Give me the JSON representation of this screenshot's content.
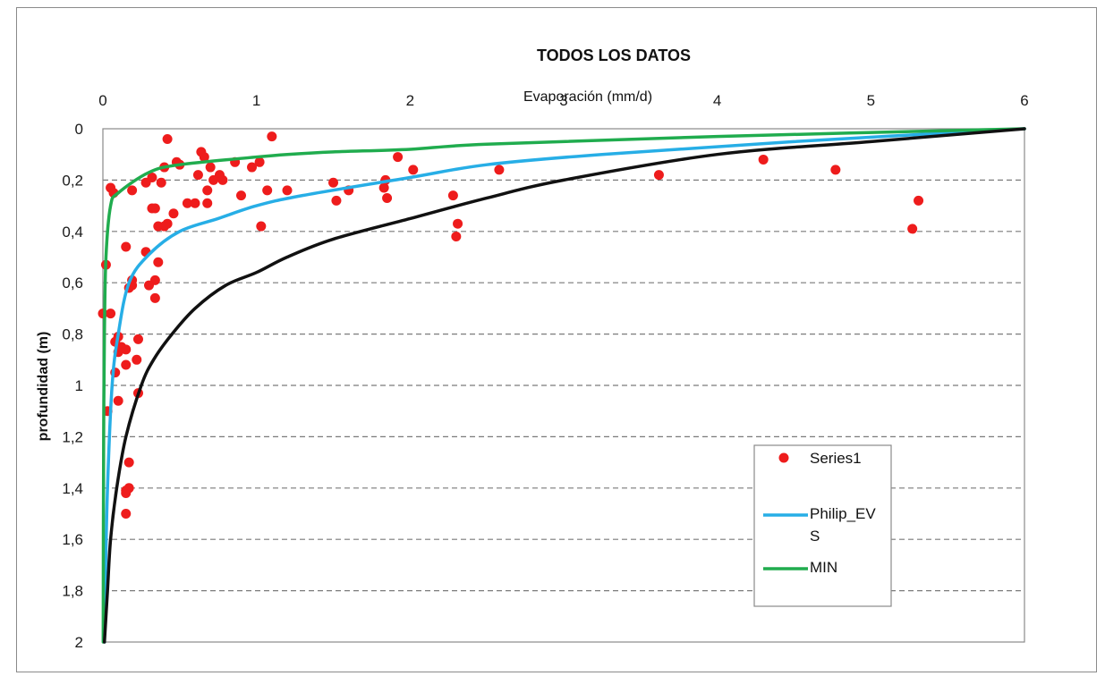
{
  "chart_data": {
    "type": "scatter",
    "title": "TODOS LOS DATOS",
    "xlabel": "Evaporación (mm/d)",
    "ylabel": "profundidad (m)",
    "xlim": [
      0,
      6
    ],
    "ylim": [
      0,
      2
    ],
    "x_axis_position": "top",
    "y_axis_inverted": true,
    "x_ticks": [
      "0",
      "1",
      "2",
      "3",
      "4",
      "5",
      "6"
    ],
    "y_ticks": [
      "0",
      "0,2",
      "0,4",
      "0,6",
      "0,8",
      "1",
      "1,2",
      "1,4",
      "1,6",
      "1,8",
      "2"
    ],
    "horizontal_grid": "dashed",
    "legend_position": "bottom-right",
    "series": [
      {
        "name": "Series1",
        "kind": "scatter",
        "color": "#ee1c1c",
        "points": [
          [
            0.42,
            0.04
          ],
          [
            1.1,
            0.03
          ],
          [
            0.64,
            0.09
          ],
          [
            0.66,
            0.11
          ],
          [
            0.48,
            0.13
          ],
          [
            0.5,
            0.14
          ],
          [
            0.4,
            0.15
          ],
          [
            0.7,
            0.15
          ],
          [
            0.62,
            0.18
          ],
          [
            0.76,
            0.18
          ],
          [
            0.72,
            0.2
          ],
          [
            0.78,
            0.2
          ],
          [
            0.86,
            0.13
          ],
          [
            0.97,
            0.15
          ],
          [
            1.02,
            0.13
          ],
          [
            0.32,
            0.19
          ],
          [
            0.28,
            0.21
          ],
          [
            0.38,
            0.21
          ],
          [
            0.05,
            0.23
          ],
          [
            0.07,
            0.25
          ],
          [
            0.19,
            0.24
          ],
          [
            0.68,
            0.24
          ],
          [
            0.9,
            0.26
          ],
          [
            1.07,
            0.24
          ],
          [
            1.2,
            0.24
          ],
          [
            0.55,
            0.29
          ],
          [
            0.6,
            0.29
          ],
          [
            0.68,
            0.29
          ],
          [
            0.46,
            0.33
          ],
          [
            0.32,
            0.31
          ],
          [
            0.34,
            0.31
          ],
          [
            0.42,
            0.37
          ],
          [
            0.36,
            0.38
          ],
          [
            0.4,
            0.38
          ],
          [
            1.03,
            0.38
          ],
          [
            0.15,
            0.46
          ],
          [
            0.28,
            0.48
          ],
          [
            0.36,
            0.52
          ],
          [
            0.02,
            0.53
          ],
          [
            0.19,
            0.59
          ],
          [
            0.34,
            0.59
          ],
          [
            0.19,
            0.61
          ],
          [
            0.3,
            0.61
          ],
          [
            0.17,
            0.62
          ],
          [
            0.34,
            0.66
          ],
          [
            0.0,
            0.72
          ],
          [
            0.05,
            0.72
          ],
          [
            0.1,
            0.81
          ],
          [
            0.08,
            0.83
          ],
          [
            0.23,
            0.82
          ],
          [
            0.12,
            0.85
          ],
          [
            0.1,
            0.87
          ],
          [
            0.15,
            0.86
          ],
          [
            0.22,
            0.9
          ],
          [
            0.15,
            0.92
          ],
          [
            0.08,
            0.95
          ],
          [
            0.23,
            1.03
          ],
          [
            0.1,
            1.06
          ],
          [
            0.03,
            1.1
          ],
          [
            0.17,
            1.3
          ],
          [
            0.17,
            1.4
          ],
          [
            0.15,
            1.41
          ],
          [
            0.15,
            1.42
          ],
          [
            0.15,
            1.5
          ],
          [
            1.5,
            0.21
          ],
          [
            1.52,
            0.28
          ],
          [
            1.6,
            0.24
          ],
          [
            1.83,
            0.23
          ],
          [
            1.84,
            0.2
          ],
          [
            1.85,
            0.27
          ],
          [
            1.92,
            0.11
          ],
          [
            2.02,
            0.16
          ],
          [
            2.28,
            0.26
          ],
          [
            2.3,
            0.42
          ],
          [
            2.31,
            0.37
          ],
          [
            2.58,
            0.16
          ],
          [
            3.62,
            0.18
          ],
          [
            4.3,
            0.12
          ],
          [
            4.77,
            0.16
          ],
          [
            5.27,
            0.39
          ],
          [
            5.31,
            0.28
          ]
        ]
      },
      {
        "name": "Philip_EVS",
        "kind": "line",
        "color": "#27aee6",
        "points": [
          [
            6.0,
            0.0
          ],
          [
            4.5,
            0.05
          ],
          [
            3.25,
            0.1
          ],
          [
            2.5,
            0.14
          ],
          [
            2.0,
            0.19
          ],
          [
            1.3,
            0.26
          ],
          [
            1.0,
            0.3
          ],
          [
            0.75,
            0.35
          ],
          [
            0.5,
            0.4
          ],
          [
            0.3,
            0.49
          ],
          [
            0.17,
            0.6
          ],
          [
            0.1,
            0.8
          ],
          [
            0.06,
            1.0
          ],
          [
            0.03,
            1.4
          ],
          [
            0.015,
            1.8
          ],
          [
            0.01,
            2.0
          ]
        ]
      },
      {
        "name": "MIN",
        "kind": "line",
        "color": "#20ac4e",
        "points": [
          [
            6.0,
            0.0
          ],
          [
            4.0,
            0.03
          ],
          [
            2.5,
            0.06
          ],
          [
            2.0,
            0.08
          ],
          [
            1.5,
            0.09
          ],
          [
            1.2,
            0.1
          ],
          [
            1.0,
            0.11
          ],
          [
            0.5,
            0.14
          ],
          [
            0.3,
            0.17
          ],
          [
            0.1,
            0.25
          ],
          [
            0.05,
            0.3
          ],
          [
            0.02,
            0.5
          ],
          [
            0.01,
            0.8
          ],
          [
            0.005,
            1.2
          ],
          [
            0.003,
            1.6
          ],
          [
            0.002,
            2.0
          ]
        ]
      },
      {
        "kind": "line",
        "color": "#111111",
        "points": [
          [
            6.0,
            0.0
          ],
          [
            5.0,
            0.05
          ],
          [
            4.0,
            0.1
          ],
          [
            3.0,
            0.2
          ],
          [
            2.5,
            0.27
          ],
          [
            2.0,
            0.35
          ],
          [
            1.5,
            0.43
          ],
          [
            1.2,
            0.5
          ],
          [
            1.0,
            0.56
          ],
          [
            0.8,
            0.61
          ],
          [
            0.6,
            0.7
          ],
          [
            0.45,
            0.8
          ],
          [
            0.33,
            0.9
          ],
          [
            0.25,
            1.0
          ],
          [
            0.15,
            1.2
          ],
          [
            0.09,
            1.4
          ],
          [
            0.05,
            1.6
          ],
          [
            0.03,
            1.8
          ],
          [
            0.01,
            2.0
          ]
        ]
      }
    ],
    "legend": [
      {
        "label": "Series1",
        "kind": "marker",
        "color": "#ee1c1c"
      },
      {
        "label": "Philip_EV S",
        "kind": "line",
        "color": "#27aee6"
      },
      {
        "label": "MIN",
        "kind": "line",
        "color": "#20ac4e"
      }
    ]
  }
}
